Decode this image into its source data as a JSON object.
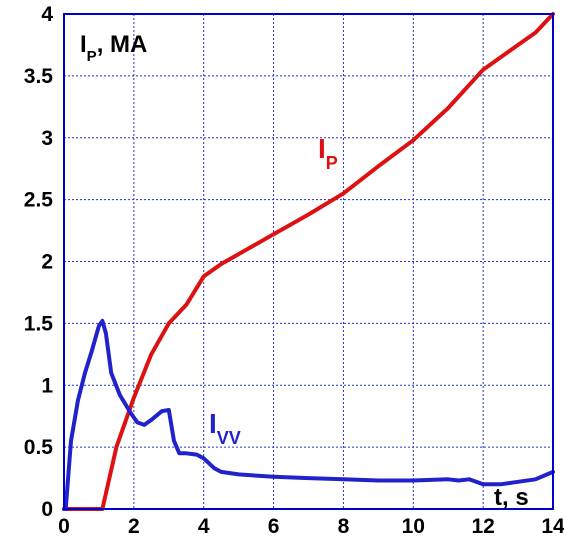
{
  "chart_data": {
    "type": "line",
    "title": "",
    "ylabel": {
      "main": "I",
      "sub": "P",
      "rest": ", MA"
    },
    "xlabel": "t, s",
    "xlim": [
      0,
      14
    ],
    "ylim": [
      0,
      4
    ],
    "grid": true,
    "x_ticks": [
      "0",
      "2",
      "4",
      "6",
      "8",
      "10",
      "12",
      "14"
    ],
    "y_ticks": [
      "0",
      "0.5",
      "1",
      "1.5",
      "2",
      "2.5",
      "3",
      "3.5",
      "4"
    ],
    "series": [
      {
        "name": "IP",
        "label_main": "I",
        "label_sub": "P",
        "color": "#dd1111",
        "x": [
          0,
          1.1,
          1.5,
          2.0,
          2.5,
          3.0,
          3.5,
          4.0,
          4.5,
          5.0,
          6.0,
          7.0,
          8.0,
          9.0,
          10.0,
          11.0,
          12.0,
          13.0,
          13.5,
          14.0
        ],
        "y": [
          0,
          0,
          0.5,
          0.9,
          1.25,
          1.5,
          1.65,
          1.88,
          1.98,
          2.06,
          2.22,
          2.38,
          2.55,
          2.77,
          2.98,
          3.24,
          3.55,
          3.75,
          3.85,
          4.0
        ]
      },
      {
        "name": "IVV",
        "label_main": "I",
        "label_sub": "VV",
        "color": "#2222cc",
        "x": [
          0,
          0.05,
          0.2,
          0.4,
          0.6,
          0.8,
          1.0,
          1.1,
          1.2,
          1.35,
          1.6,
          1.9,
          2.1,
          2.3,
          2.5,
          2.8,
          3.0,
          3.15,
          3.3,
          3.5,
          3.8,
          4.0,
          4.3,
          4.5,
          5.0,
          6.0,
          7.0,
          8.0,
          9.0,
          10.0,
          11.0,
          11.3,
          11.6,
          12.0,
          12.5,
          13.0,
          13.5,
          14.0
        ],
        "y": [
          0,
          0,
          0.55,
          0.88,
          1.1,
          1.28,
          1.48,
          1.52,
          1.42,
          1.1,
          0.92,
          0.78,
          0.7,
          0.68,
          0.72,
          0.79,
          0.8,
          0.55,
          0.45,
          0.45,
          0.44,
          0.41,
          0.33,
          0.3,
          0.28,
          0.26,
          0.25,
          0.24,
          0.23,
          0.23,
          0.24,
          0.23,
          0.24,
          0.2,
          0.2,
          0.22,
          0.24,
          0.3
        ]
      }
    ]
  }
}
